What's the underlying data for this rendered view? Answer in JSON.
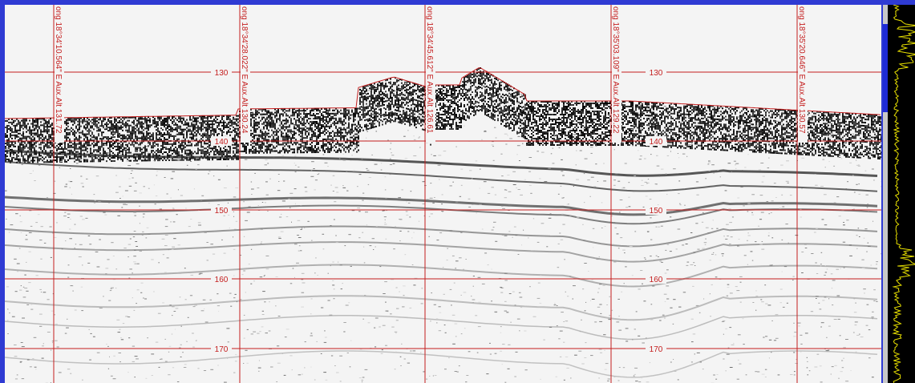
{
  "profile": {
    "depth_labels": [
      "130",
      "140",
      "150",
      "160",
      "170"
    ],
    "position_labels": [
      "ong 18°34'10.564\" E Aux.Alt 131.72",
      "ong 18°34'28.022\" E Aux.Alt 130.24",
      "ong 18°34'45.612\" E Aux.Alt 126.61",
      "ong 18°35'03.109\" E Aux.Alt 129.22",
      "ong 18°35'20.646\" E Aux.Alt 130.57"
    ],
    "grid_color": "#c41e1e",
    "frame_color": "#2f3bd3",
    "trace_color": "#e8e000"
  }
}
